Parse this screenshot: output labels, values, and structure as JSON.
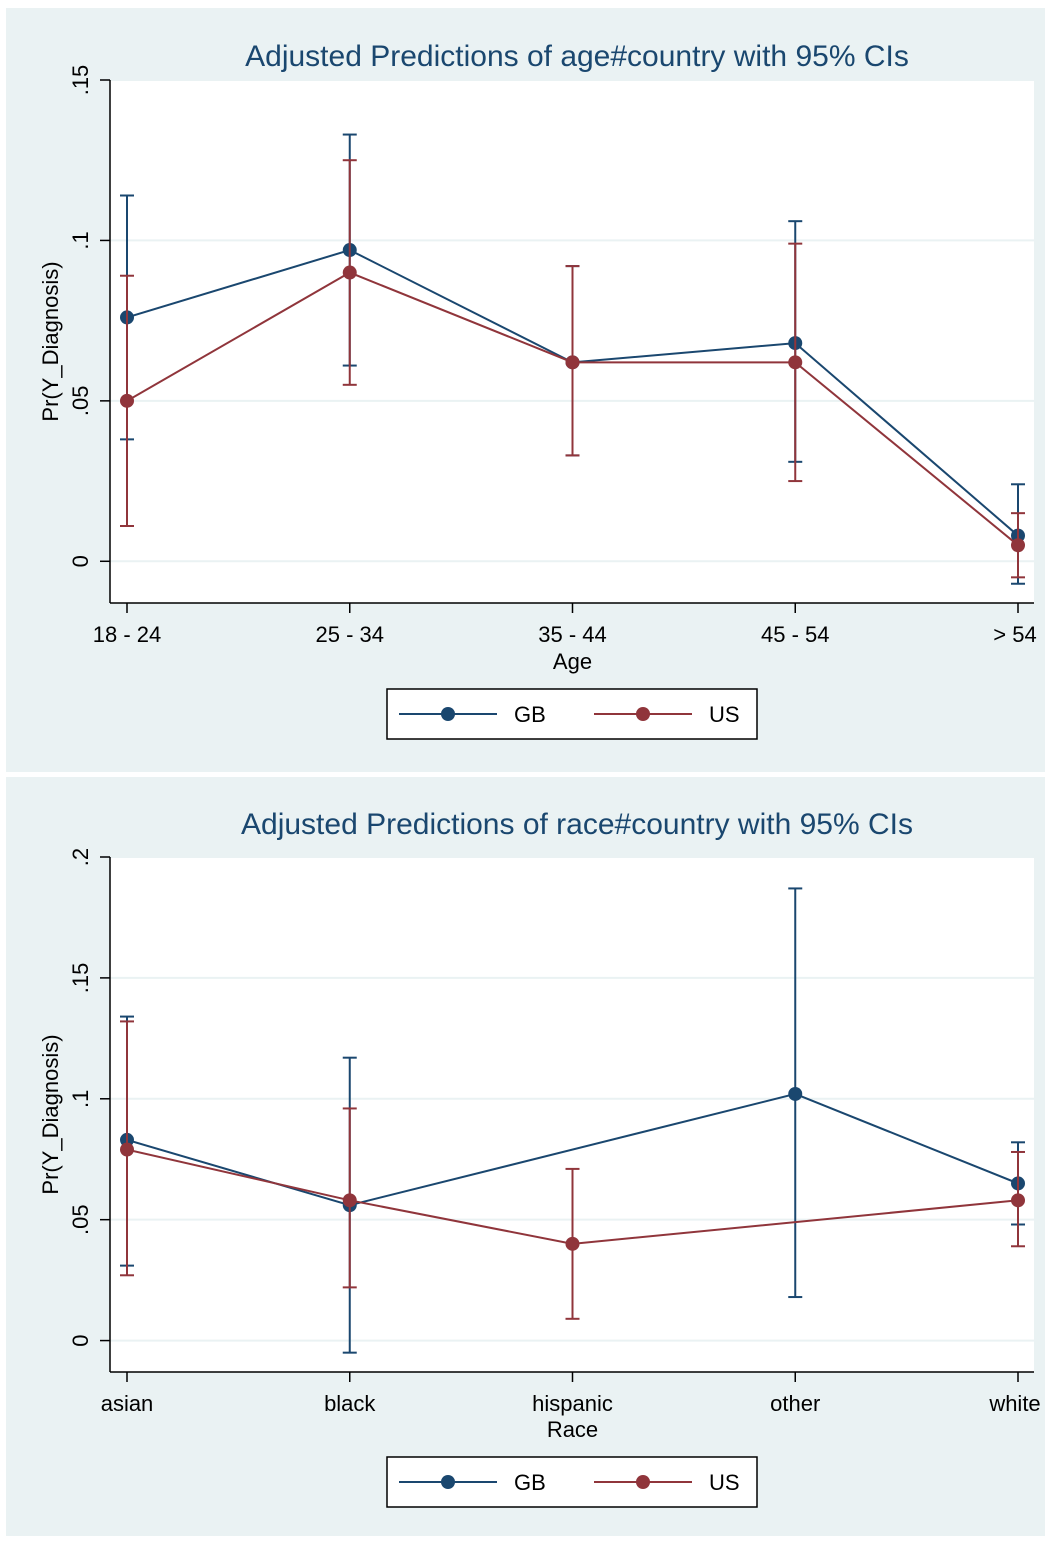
{
  "colors": {
    "GB": "#1a476f",
    "US": "#90353b",
    "axis": "#000000",
    "grid": "#eaf2f3",
    "background": "#eaf2f3",
    "plot_background": "#ffffff",
    "title": "#1a476f"
  },
  "chart_data": [
    {
      "type": "line",
      "title": "Adjusted Predictions of age#country with 95% CIs",
      "xlabel": "Age",
      "ylabel": "Pr(Y_Diagnosis)",
      "categories": [
        "18 - 24",
        "25 - 34",
        "35 - 44",
        "45 - 54",
        "> 54"
      ],
      "yticks": [
        "0",
        ".05",
        ".1",
        ".15"
      ],
      "ylim": [
        -0.013,
        0.15
      ],
      "grid": true,
      "legend_position": "bottom",
      "series": [
        {
          "name": "GB",
          "color": "#1a476f",
          "values": [
            0.076,
            0.097,
            0.062,
            0.068,
            0.008
          ],
          "ci_low": [
            0.038,
            0.061,
            0.033,
            0.031,
            -0.007
          ],
          "ci_high": [
            0.114,
            0.133,
            0.092,
            0.106,
            0.024
          ]
        },
        {
          "name": "US",
          "color": "#90353b",
          "values": [
            0.05,
            0.09,
            0.062,
            0.062,
            0.005
          ],
          "ci_low": [
            0.011,
            0.055,
            0.033,
            0.025,
            -0.005
          ],
          "ci_high": [
            0.089,
            0.125,
            0.092,
            0.099,
            0.015
          ]
        }
      ]
    },
    {
      "type": "line",
      "title": "Adjusted Predictions of race#country with 95% CIs",
      "xlabel": "Race",
      "ylabel": "Pr(Y_Diagnosis)",
      "categories": [
        "asian",
        "black",
        "hispanic",
        "other",
        "white"
      ],
      "yticks": [
        "0",
        ".05",
        ".1",
        ".15",
        ".2"
      ],
      "ylim": [
        -0.013,
        0.2
      ],
      "grid": true,
      "legend_position": "bottom",
      "series": [
        {
          "name": "GB",
          "color": "#1a476f",
          "values": [
            0.083,
            0.056,
            null,
            0.102,
            0.065
          ],
          "ci_low": [
            0.031,
            -0.005,
            null,
            0.018,
            0.048
          ],
          "ci_high": [
            0.134,
            0.117,
            null,
            0.187,
            0.082
          ]
        },
        {
          "name": "US",
          "color": "#90353b",
          "values": [
            0.079,
            0.058,
            0.04,
            null,
            0.058
          ],
          "ci_low": [
            0.027,
            0.022,
            0.009,
            null,
            0.039
          ],
          "ci_high": [
            0.132,
            0.096,
            0.071,
            null,
            0.078
          ]
        }
      ]
    }
  ]
}
